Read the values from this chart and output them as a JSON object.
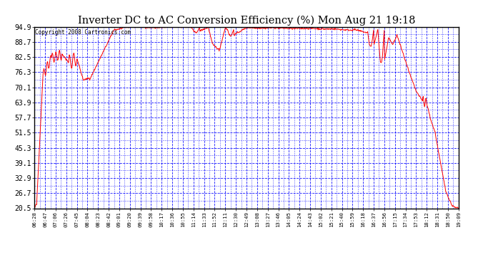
{
  "title": "Inverter DC to AC Conversion Efficiency (%) Mon Aug 21 19:18",
  "copyright": "Copyright 2008 Cartronics.com",
  "background_color": "#ffffff",
  "plot_bg_color": "#ffffff",
  "grid_color": "#0000ff",
  "line_color": "#ff0000",
  "title_color": "#000000",
  "yticks": [
    20.5,
    26.7,
    32.9,
    39.1,
    45.3,
    51.5,
    57.7,
    63.9,
    70.1,
    76.3,
    82.5,
    88.7,
    94.9
  ],
  "xtick_labels": [
    "06:28",
    "06:47",
    "07:06",
    "07:26",
    "07:45",
    "08:04",
    "08:23",
    "08:42",
    "09:01",
    "09:20",
    "09:39",
    "09:58",
    "10:17",
    "10:36",
    "10:55",
    "11:14",
    "11:33",
    "11:52",
    "12:11",
    "12:30",
    "12:49",
    "13:08",
    "13:27",
    "13:46",
    "14:05",
    "14:24",
    "14:43",
    "15:02",
    "15:21",
    "15:40",
    "15:59",
    "16:18",
    "16:37",
    "16:56",
    "17:15",
    "17:34",
    "17:53",
    "18:12",
    "18:31",
    "18:50",
    "19:09"
  ],
  "ymin": 20.5,
  "ymax": 94.9,
  "n_points": 1000
}
